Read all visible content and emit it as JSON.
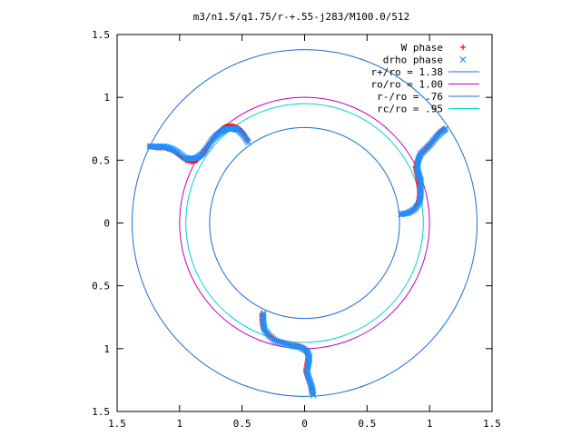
{
  "chart_data": {
    "type": "scatter",
    "title": "m3/n1.5/q1.75/r-+.55-j283/M100.0/512",
    "xlabel": "",
    "ylabel": "",
    "xlim": [
      -1.5,
      1.5
    ],
    "ylim": [
      -1.5,
      1.5
    ],
    "x_tick_labels": [
      "1.5",
      "1",
      "0.5",
      "0",
      "0.5",
      "1",
      "1.5"
    ],
    "y_tick_labels": [
      "1.5",
      "1",
      "0.5",
      "0",
      "0.5",
      "1",
      "1.5"
    ],
    "grid": false,
    "legend_position": "top-right",
    "series": [
      {
        "name": "W phase",
        "kind": "points",
        "marker": "+",
        "color": "#ff0000",
        "arms": [
          [
            [
              -1.24,
              0.61
            ],
            [
              -1.18,
              0.6
            ],
            [
              -1.12,
              0.6
            ],
            [
              -1.06,
              0.58
            ],
            [
              -1.0,
              0.54
            ],
            [
              -0.95,
              0.5
            ],
            [
              -0.9,
              0.49
            ],
            [
              -0.86,
              0.5
            ],
            [
              -0.82,
              0.54
            ],
            [
              -0.78,
              0.6
            ],
            [
              -0.74,
              0.66
            ],
            [
              -0.7,
              0.71
            ],
            [
              -0.66,
              0.75
            ],
            [
              -0.62,
              0.77
            ],
            [
              -0.57,
              0.77
            ],
            [
              -0.52,
              0.75
            ],
            [
              -0.49,
              0.71
            ],
            [
              -0.46,
              0.66
            ]
          ],
          [
            [
              1.12,
              0.75
            ],
            [
              1.08,
              0.72
            ],
            [
              1.04,
              0.67
            ],
            [
              1.0,
              0.62
            ],
            [
              0.96,
              0.58
            ],
            [
              0.92,
              0.54
            ],
            [
              0.9,
              0.49
            ],
            [
              0.89,
              0.44
            ],
            [
              0.9,
              0.39
            ],
            [
              0.91,
              0.33
            ],
            [
              0.92,
              0.27
            ],
            [
              0.92,
              0.21
            ],
            [
              0.91,
              0.16
            ],
            [
              0.88,
              0.11
            ],
            [
              0.83,
              0.08
            ],
            [
              0.78,
              0.07
            ]
          ],
          [
            [
              0.06,
              -1.36
            ],
            [
              0.05,
              -1.3
            ],
            [
              0.03,
              -1.24
            ],
            [
              0.01,
              -1.18
            ],
            [
              0.02,
              -1.12
            ],
            [
              0.03,
              -1.06
            ],
            [
              0.01,
              -1.01
            ],
            [
              -0.04,
              -0.98
            ],
            [
              -0.1,
              -0.97
            ],
            [
              -0.17,
              -0.95
            ],
            [
              -0.24,
              -0.93
            ],
            [
              -0.29,
              -0.89
            ],
            [
              -0.33,
              -0.84
            ],
            [
              -0.34,
              -0.78
            ],
            [
              -0.34,
              -0.72
            ]
          ]
        ]
      },
      {
        "name": "drho phase",
        "kind": "points",
        "marker": "x",
        "color": "#1e90ff",
        "arms": [
          [
            [
              -1.24,
              0.61
            ],
            [
              -1.18,
              0.61
            ],
            [
              -1.12,
              0.61
            ],
            [
              -1.06,
              0.59
            ],
            [
              -1.01,
              0.56
            ],
            [
              -0.96,
              0.52
            ],
            [
              -0.91,
              0.51
            ],
            [
              -0.86,
              0.52
            ],
            [
              -0.82,
              0.55
            ],
            [
              -0.78,
              0.6
            ],
            [
              -0.74,
              0.66
            ],
            [
              -0.7,
              0.7
            ],
            [
              -0.66,
              0.73
            ],
            [
              -0.62,
              0.75
            ],
            [
              -0.57,
              0.75
            ],
            [
              -0.53,
              0.74
            ],
            [
              -0.49,
              0.7
            ],
            [
              -0.45,
              0.64
            ]
          ],
          [
            [
              1.13,
              0.75
            ],
            [
              1.09,
              0.72
            ],
            [
              1.05,
              0.68
            ],
            [
              1.01,
              0.63
            ],
            [
              0.97,
              0.59
            ],
            [
              0.93,
              0.55
            ],
            [
              0.91,
              0.5
            ],
            [
              0.9,
              0.45
            ],
            [
              0.91,
              0.4
            ],
            [
              0.93,
              0.34
            ],
            [
              0.93,
              0.28
            ],
            [
              0.93,
              0.22
            ],
            [
              0.92,
              0.16
            ],
            [
              0.88,
              0.11
            ],
            [
              0.83,
              0.08
            ],
            [
              0.77,
              0.07
            ]
          ],
          [
            [
              0.07,
              -1.37
            ],
            [
              0.06,
              -1.31
            ],
            [
              0.04,
              -1.25
            ],
            [
              0.02,
              -1.19
            ],
            [
              0.03,
              -1.13
            ],
            [
              0.04,
              -1.07
            ],
            [
              0.02,
              -1.02
            ],
            [
              -0.03,
              -0.99
            ],
            [
              -0.09,
              -0.98
            ],
            [
              -0.16,
              -0.96
            ],
            [
              -0.23,
              -0.94
            ],
            [
              -0.28,
              -0.9
            ],
            [
              -0.32,
              -0.85
            ],
            [
              -0.33,
              -0.79
            ],
            [
              -0.33,
              -0.72
            ]
          ]
        ]
      },
      {
        "name": "r+/ro = 1.38",
        "kind": "circle",
        "radius": 1.38,
        "color": "#1a6ed8"
      },
      {
        "name": "ro/ro = 1.00",
        "kind": "circle",
        "radius": 1.0,
        "color": "#c000c0"
      },
      {
        "name": "r-/ro = .76",
        "kind": "circle",
        "radius": 0.76,
        "color": "#1a6ed8"
      },
      {
        "name": "rc/ro = .95",
        "kind": "circle",
        "radius": 0.95,
        "color": "#00d0d0"
      }
    ]
  }
}
